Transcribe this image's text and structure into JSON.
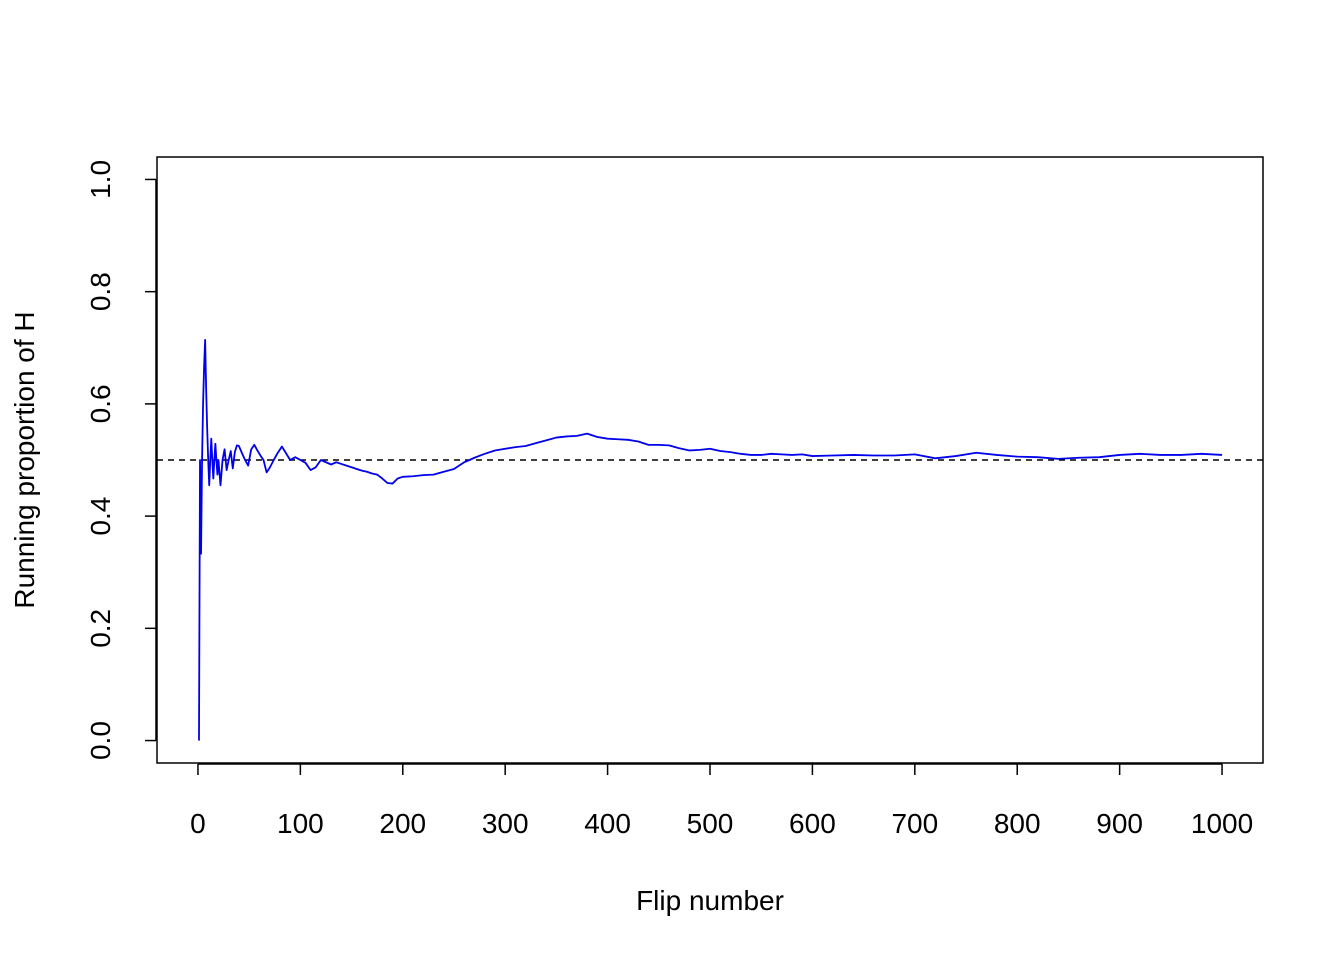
{
  "chart_data": {
    "type": "line",
    "title": "",
    "xlabel": "Flip number",
    "ylabel": "Running proportion of H",
    "xlim": [
      -40,
      1040
    ],
    "ylim": [
      -0.04,
      1.04
    ],
    "x_ticks": [
      0,
      100,
      200,
      300,
      400,
      500,
      600,
      700,
      800,
      900,
      1000
    ],
    "y_ticks": [
      0.0,
      0.2,
      0.4,
      0.6,
      0.8,
      1.0
    ],
    "x_tick_labels": [
      "0",
      "100",
      "200",
      "300",
      "400",
      "500",
      "600",
      "700",
      "800",
      "900",
      "1000"
    ],
    "y_tick_labels": [
      "0.0",
      "0.2",
      "0.4",
      "0.6",
      "0.8",
      "1.0"
    ],
    "grid": false,
    "legend": "none",
    "reference_line": {
      "y": 0.5,
      "style": "dashed",
      "color": "#000000"
    },
    "series": [
      {
        "color": "#0000EE",
        "x": [
          1,
          2,
          3,
          4,
          5,
          6,
          7,
          8,
          9,
          10,
          11,
          12,
          13,
          14,
          15,
          16,
          17,
          18,
          19,
          20,
          22,
          24,
          26,
          28,
          30,
          32,
          34,
          36,
          38,
          40,
          43,
          46,
          49,
          52,
          55,
          58,
          61,
          64,
          67,
          70,
          74,
          78,
          82,
          86,
          90,
          95,
          100,
          105,
          110,
          115,
          120,
          125,
          130,
          135,
          140,
          145,
          150,
          155,
          160,
          165,
          170,
          175,
          180,
          185,
          190,
          195,
          200,
          210,
          220,
          230,
          240,
          250,
          260,
          270,
          280,
          290,
          300,
          310,
          320,
          330,
          340,
          350,
          360,
          370,
          380,
          390,
          400,
          410,
          420,
          430,
          440,
          450,
          460,
          470,
          480,
          490,
          500,
          510,
          520,
          530,
          540,
          550,
          560,
          570,
          580,
          590,
          600,
          620,
          640,
          660,
          680,
          700,
          720,
          740,
          760,
          780,
          800,
          820,
          840,
          860,
          880,
          900,
          920,
          940,
          960,
          980,
          1000
        ],
        "y": [
          0.0,
          0.5,
          0.333,
          0.5,
          0.6,
          0.667,
          0.714,
          0.625,
          0.556,
          0.5,
          0.455,
          0.5,
          0.538,
          0.5,
          0.467,
          0.5,
          0.529,
          0.5,
          0.474,
          0.5,
          0.455,
          0.5,
          0.519,
          0.482,
          0.5,
          0.516,
          0.485,
          0.514,
          0.526,
          0.525,
          0.512,
          0.5,
          0.49,
          0.519,
          0.527,
          0.517,
          0.508,
          0.5,
          0.478,
          0.486,
          0.5,
          0.513,
          0.524,
          0.512,
          0.5,
          0.505,
          0.5,
          0.495,
          0.482,
          0.487,
          0.5,
          0.496,
          0.492,
          0.496,
          0.493,
          0.49,
          0.487,
          0.484,
          0.481,
          0.479,
          0.476,
          0.474,
          0.467,
          0.459,
          0.458,
          0.467,
          0.47,
          0.471,
          0.473,
          0.474,
          0.479,
          0.484,
          0.496,
          0.504,
          0.511,
          0.517,
          0.52,
          0.523,
          0.525,
          0.53,
          0.535,
          0.54,
          0.542,
          0.543,
          0.547,
          0.541,
          0.538,
          0.537,
          0.536,
          0.533,
          0.527,
          0.527,
          0.526,
          0.521,
          0.517,
          0.518,
          0.52,
          0.516,
          0.514,
          0.511,
          0.509,
          0.509,
          0.511,
          0.51,
          0.509,
          0.51,
          0.507,
          0.508,
          0.509,
          0.508,
          0.508,
          0.51,
          0.503,
          0.507,
          0.513,
          0.509,
          0.506,
          0.505,
          0.502,
          0.504,
          0.505,
          0.509,
          0.511,
          0.509,
          0.509,
          0.511,
          0.509
        ]
      }
    ]
  }
}
